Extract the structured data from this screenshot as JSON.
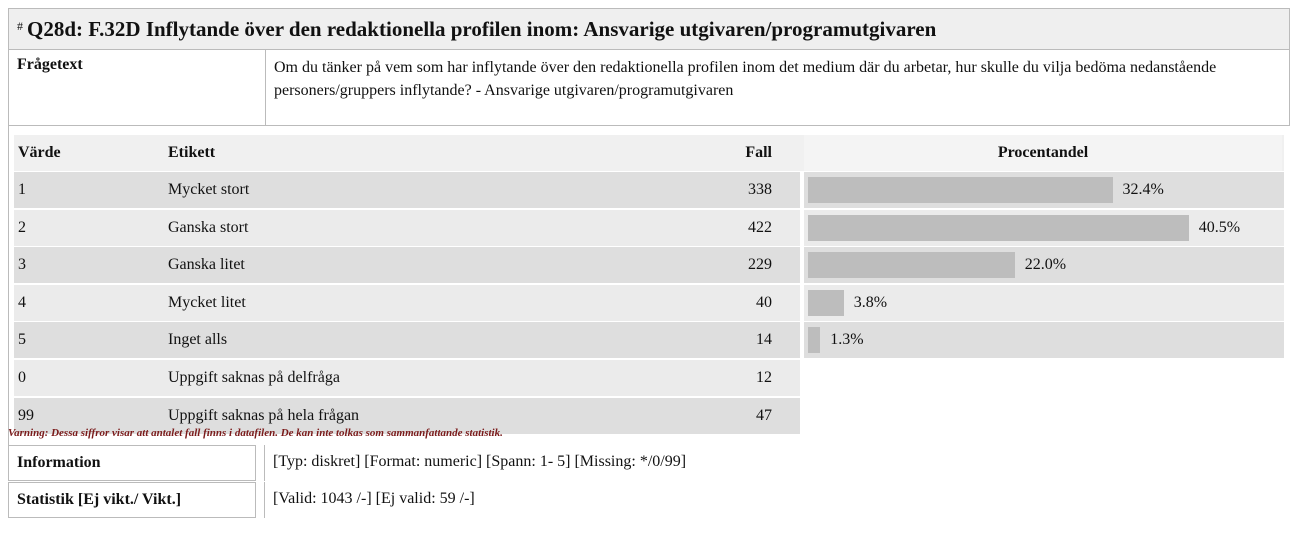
{
  "header": {
    "hash": "#",
    "title": "Q28d: F.32D Inflytande över den redaktionella profilen inom: Ansvarige utgivaren/programutgivaren"
  },
  "question": {
    "label": "Frågetext",
    "text": "Om du tänker på vem som har inflytande över den redaktionella profilen inom det medium där du arbetar, hur skulle du vilja bedöma nedanstående personers/gruppers inflytande? - Ansvarige utgivaren/programutgivaren"
  },
  "table": {
    "columns": [
      "Värde",
      "Etikett",
      "Fall",
      "Procentandel"
    ],
    "rows": [
      {
        "value": "1",
        "label": "Mycket stort",
        "cases": "338",
        "percent": 32.4,
        "percent_label": "32.4%"
      },
      {
        "value": "2",
        "label": "Ganska stort",
        "cases": "422",
        "percent": 40.5,
        "percent_label": "40.5%"
      },
      {
        "value": "3",
        "label": "Ganska litet",
        "cases": "229",
        "percent": 22.0,
        "percent_label": "22.0%"
      },
      {
        "value": "4",
        "label": "Mycket litet",
        "cases": "40",
        "percent": 3.8,
        "percent_label": "3.8%"
      },
      {
        "value": "5",
        "label": "Inget alls",
        "cases": "14",
        "percent": 1.3,
        "percent_label": "1.3%"
      },
      {
        "value": "0",
        "label": "Uppgift saknas på delfråga",
        "cases": "12"
      },
      {
        "value": "99",
        "label": "Uppgift saknas på hela frågan",
        "cases": "47"
      }
    ],
    "warning": "Varning: Dessa siffror visar att antalet fall finns i datafilen. De kan inte tolkas som sammanfattande statistik."
  },
  "information": {
    "label": "Information",
    "text": "[Typ: diskret] [Format: numeric] [Spann: 1- 5] [Missing: */0/99]"
  },
  "statistics": {
    "label": "Statistik [Ej vikt./ Vikt.]",
    "text": "[Valid: 1043 /-] [Ej valid: 59 /-]"
  }
}
